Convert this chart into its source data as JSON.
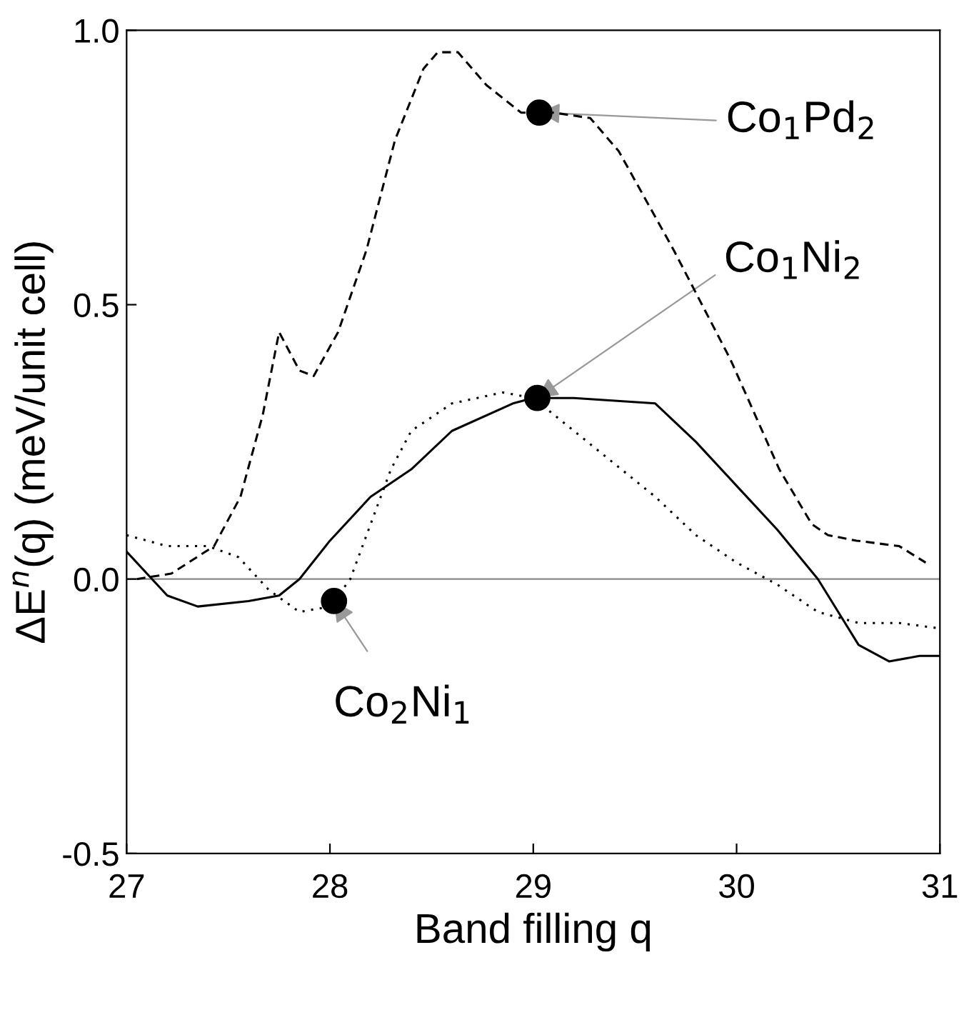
{
  "chart_data": {
    "type": "line",
    "xlabel": "Band filling q",
    "ylabel": "ΔE$^{n}$(q) (meV/unit cell)",
    "xlim": [
      27,
      31
    ],
    "xticks": [
      27,
      28,
      29,
      30,
      31
    ],
    "ylim": [
      -0.5,
      1.0
    ],
    "yticks": [
      {
        "value": -0.5,
        "label": "-0.5"
      },
      {
        "value": 0.0,
        "label": "0.0"
      },
      {
        "value": 0.5,
        "label": "0.5"
      },
      {
        "value": 1.0,
        "label": "1.0"
      }
    ],
    "grid": false,
    "legend": false,
    "series": [
      {
        "color": "#000000",
        "line_style": "dashed",
        "x": [
          27.05,
          27.22,
          27.43,
          27.56,
          27.67,
          27.75,
          27.85,
          27.92,
          28.04,
          28.18,
          28.32,
          28.46,
          28.53,
          28.63,
          28.77,
          28.94,
          29.1,
          29.28,
          29.42,
          29.69,
          29.97,
          30.21,
          30.37,
          30.45,
          30.59,
          30.8,
          30.93
        ],
        "values": [
          0.0,
          0.01,
          0.06,
          0.15,
          0.3,
          0.45,
          0.38,
          0.37,
          0.45,
          0.6,
          0.8,
          0.93,
          0.96,
          0.96,
          0.9,
          0.85,
          0.85,
          0.84,
          0.78,
          0.6,
          0.4,
          0.2,
          0.1,
          0.08,
          0.07,
          0.06,
          0.03
        ]
      },
      {
        "color": "#000000",
        "line_style": "solid",
        "x": [
          27.0,
          27.2,
          27.35,
          27.6,
          27.75,
          27.85,
          28.0,
          28.2,
          28.4,
          28.6,
          28.9,
          29.0,
          29.2,
          29.6,
          29.8,
          30.0,
          30.2,
          30.4,
          30.5,
          30.6,
          30.75,
          30.9,
          31.0
        ],
        "values": [
          0.05,
          -0.03,
          -0.05,
          -0.04,
          -0.03,
          0.0,
          0.07,
          0.15,
          0.2,
          0.27,
          0.32,
          0.33,
          0.33,
          0.32,
          0.25,
          0.17,
          0.09,
          0.0,
          -0.06,
          -0.12,
          -0.15,
          -0.14,
          -0.14
        ]
      },
      {
        "color": "#000000",
        "line_style": "dotted",
        "x": [
          27.0,
          27.2,
          27.4,
          27.55,
          27.7,
          27.85,
          28.0,
          28.1,
          28.2,
          28.3,
          28.4,
          28.6,
          28.85,
          29.0,
          29.2,
          29.4,
          29.6,
          29.8,
          30.0,
          30.2,
          30.4,
          30.6,
          30.8,
          31.0
        ],
        "values": [
          0.08,
          0.06,
          0.06,
          0.04,
          -0.02,
          -0.06,
          -0.05,
          0.0,
          0.1,
          0.2,
          0.27,
          0.32,
          0.34,
          0.33,
          0.27,
          0.21,
          0.15,
          0.08,
          0.03,
          -0.01,
          -0.06,
          -0.08,
          -0.08,
          -0.09
        ]
      },
      {
        "type": "scatter",
        "color": "#000000",
        "marker": "circle",
        "x": [
          29.03,
          29.02,
          28.02
        ],
        "values": [
          0.85,
          0.33,
          -0.04
        ]
      }
    ],
    "ref_lines": [
      {
        "axis": "y",
        "value": 0,
        "color": "#888888"
      }
    ],
    "annotations": [
      {
        "text": "Co$_{1}$Pd$_{2}$",
        "x": 29.03,
        "y": 0.85
      },
      {
        "text": "Co$_{1}$Ni$_{2}$",
        "x": 29.02,
        "y": 0.33
      },
      {
        "text": "Co$_{2}$Ni$_{1}$",
        "x": 28.02,
        "y": -0.04
      }
    ]
  }
}
